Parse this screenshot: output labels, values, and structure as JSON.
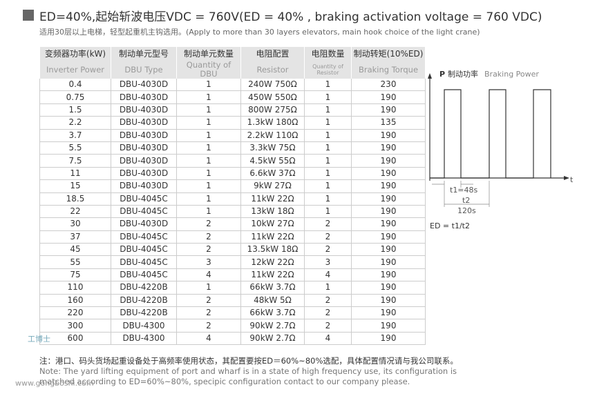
{
  "header": {
    "title": "ED=40%,起始斩波电压VDC = 760V(ED = 40% , braking activation voltage = 760 VDC)",
    "subtitle": "适用30层以上电梯，轻型起重机主钩选用。(Apply to more than 30 layers elevators, main hook choice of the light crane)"
  },
  "table": {
    "columns": [
      {
        "zh": "变频器功率(kW)",
        "en": "Inverter Power"
      },
      {
        "zh": "制动单元型号",
        "en": "DBU Type"
      },
      {
        "zh": "制动单元数量",
        "en": "Quantity of DBU"
      },
      {
        "zh": "电阻配置",
        "en": "Resistor"
      },
      {
        "zh": "电阻数量",
        "en": "Quantity of Resistor"
      },
      {
        "zh": "制动转矩(10%ED)",
        "en": "Braking Torque"
      }
    ],
    "rows": [
      [
        0.4,
        "DBU-4030D",
        1,
        "240W 750Ω",
        1,
        230
      ],
      [
        0.75,
        "DBU-4030D",
        1,
        "450W 550Ω",
        1,
        190
      ],
      [
        1.5,
        "DBU-4030D",
        1,
        "800W 275Ω",
        1,
        190
      ],
      [
        2.2,
        "DBU-4030D",
        1,
        "1.3kW 180Ω",
        1,
        135
      ],
      [
        3.7,
        "DBU-4030D",
        1,
        "2.2kW 110Ω",
        1,
        190
      ],
      [
        5.5,
        "DBU-4030D",
        1,
        "3.3kW 75Ω",
        1,
        190
      ],
      [
        7.5,
        "DBU-4030D",
        1,
        "4.5kW 55Ω",
        1,
        190
      ],
      [
        11,
        "DBU-4030D",
        1,
        "6.6kW 37Ω",
        1,
        190
      ],
      [
        15,
        "DBU-4030D",
        1,
        "9kW 27Ω",
        1,
        190
      ],
      [
        18.5,
        "DBU-4045C",
        1,
        "11kW 22Ω",
        1,
        190
      ],
      [
        22,
        "DBU-4045C",
        1,
        "13kW 18Ω",
        1,
        190
      ],
      [
        30,
        "DBU-4030D",
        2,
        "10kW 27Ω",
        2,
        190
      ],
      [
        37,
        "DBU-4045C",
        2,
        "11kW 22Ω",
        2,
        190
      ],
      [
        45,
        "DBU-4045C",
        2,
        "13.5kW 18Ω",
        2,
        190
      ],
      [
        55,
        "DBU-4045C",
        3,
        "12kW 22Ω",
        3,
        190
      ],
      [
        75,
        "DBU-4045C",
        4,
        "11kW 22Ω",
        4,
        190
      ],
      [
        110,
        "DBU-4220B",
        1,
        "66kW 3.7Ω",
        1,
        190
      ],
      [
        160,
        "DBU-4220B",
        2,
        "48kW 5Ω",
        2,
        190
      ],
      [
        220,
        "DBU-4220B",
        2,
        "66kW 3.7Ω",
        2,
        190
      ],
      [
        300,
        "DBU-4300",
        2,
        "90kW 2.7Ω",
        2,
        190
      ],
      [
        600,
        "DBU-4300",
        4,
        "90kW 2.7Ω",
        4,
        190
      ]
    ]
  },
  "diagram": {
    "p": "P",
    "p_zh": "制动功率",
    "p_en": "Braking Power",
    "t": "t",
    "t1": "t1=48s",
    "t2": "t2",
    "t2_value": "120s",
    "formula": "ED = t1/t2"
  },
  "notes": {
    "zh": "注：港口、码头货场起重设备处于高频率使用状态，其配置要按ED＝60%~80%选配，具体配置情况请与我公司联系。",
    "en": "Note: The yard lifting equipment of port and wharf  is in a state of high frequency use, its configuration is matched according to ED=60%~80%, specipic configuration contact to our company please."
  },
  "watermark": {
    "name": "工博士",
    "url": "www.gongboshi.com"
  }
}
